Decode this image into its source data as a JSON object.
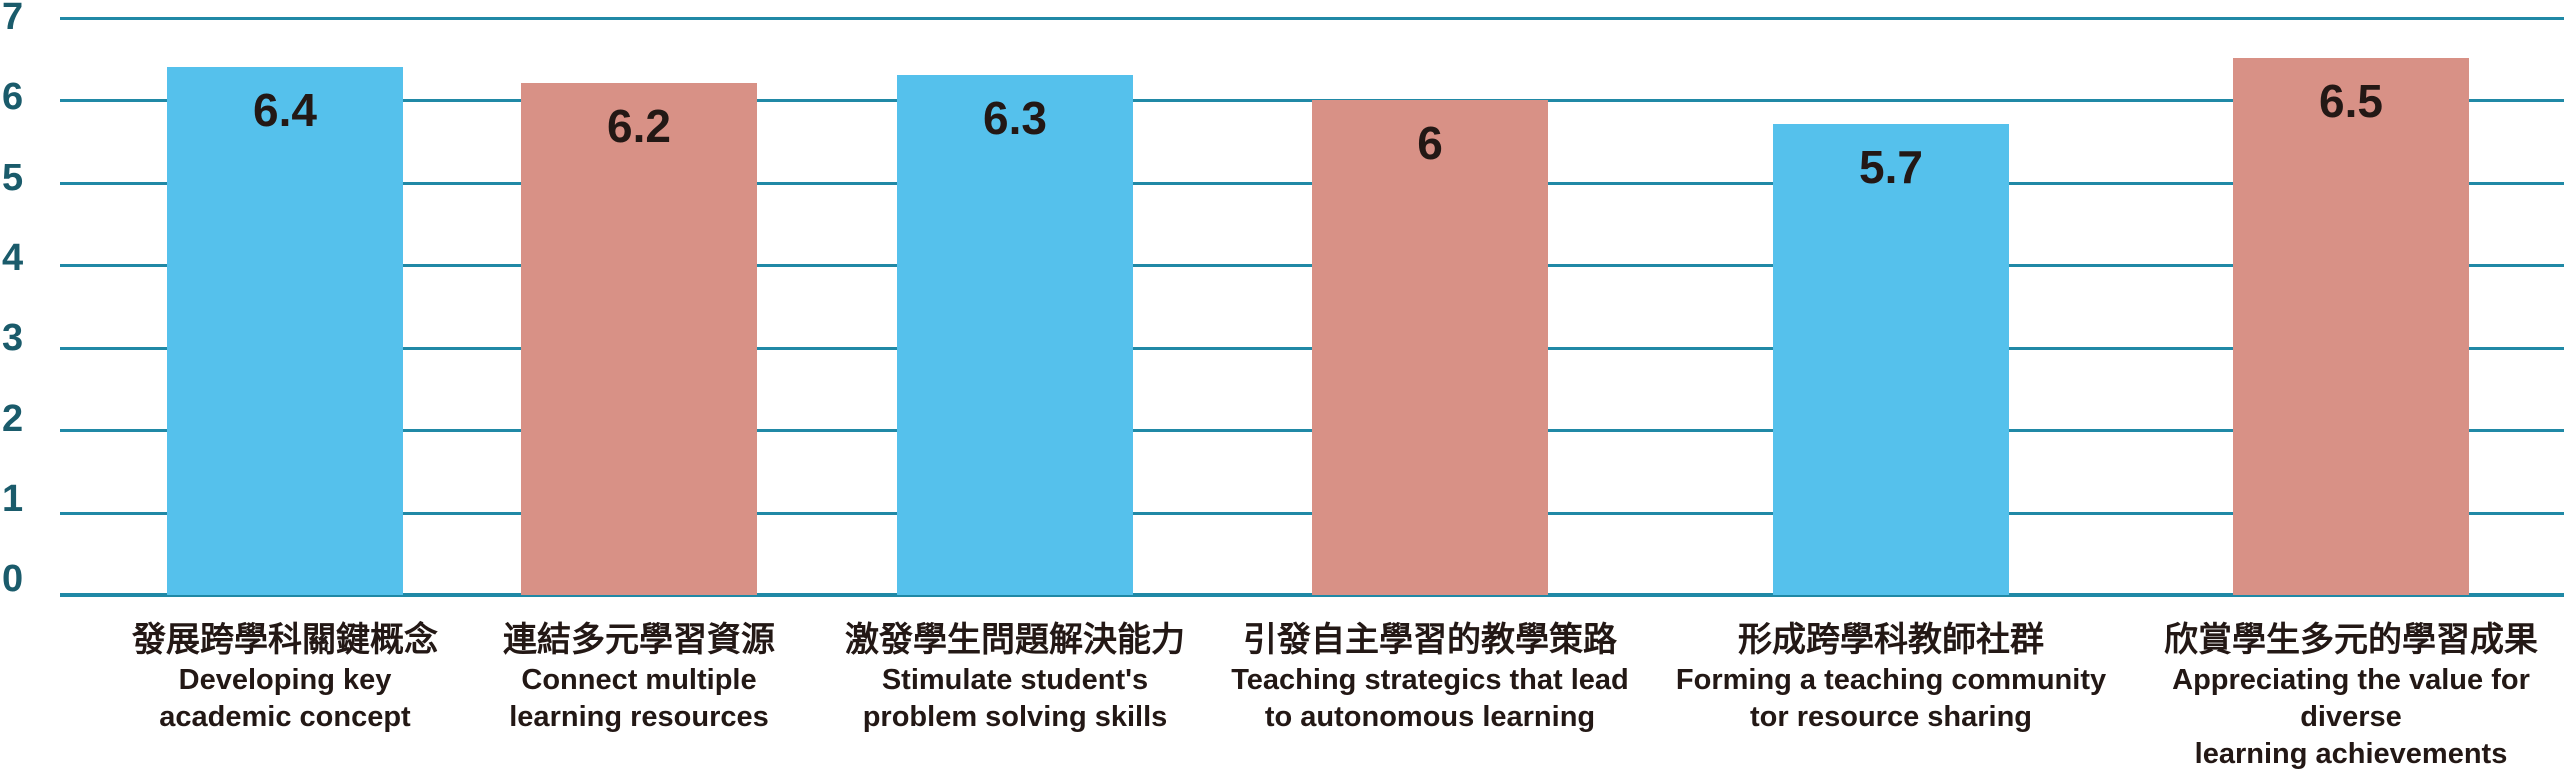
{
  "chart_data": {
    "type": "bar",
    "title": "",
    "xlabel": "",
    "ylabel": "",
    "ylim": [
      0,
      7
    ],
    "yticks": [
      "7",
      "6",
      "5",
      "4",
      "3",
      "2",
      "1",
      "0"
    ],
    "grid": "horizontal",
    "legend": "none",
    "colors": {
      "bar_blue": "#55C1EC",
      "bar_salmon": "#D89186",
      "gridline": "#2089A6",
      "tick_text": "#1A5B6B",
      "label_text": "#231815"
    },
    "categories_zh": [
      "發展跨學科關鍵概念",
      "連結多元學習資源",
      "激發學生問題解決能力",
      "引發自主學習的教學策路",
      "形成跨學科教師社群",
      "欣賞學生多元的學習成果"
    ],
    "categories_en": [
      "Developing key academic concept",
      "Connect multiple learning resources",
      "Stimulate student's problem solving skills",
      "Teaching strategics that lead to autonomous learning",
      "Forming a teaching community tor resource sharing",
      "Appreciating the value for diverse learning achievements"
    ],
    "values": [
      6.4,
      6.2,
      6.3,
      6,
      5.7,
      6.5
    ],
    "bars": [
      {
        "value": 6.4,
        "value_label": "6.4",
        "color": "#55C1EC",
        "category_zh": "發展跨學科關鍵概念",
        "en_line1": "Developing key",
        "en_line2": "academic concept"
      },
      {
        "value": 6.2,
        "value_label": "6.2",
        "color": "#D89186",
        "category_zh": "連結多元學習資源",
        "en_line1": "Connect multiple",
        "en_line2": "learning resources"
      },
      {
        "value": 6.3,
        "value_label": "6.3",
        "color": "#55C1EC",
        "category_zh": "激發學生問題解決能力",
        "en_line1": "Stimulate student's",
        "en_line2": "problem solving skills"
      },
      {
        "value": 6,
        "value_label": "6",
        "color": "#D89186",
        "category_zh": "引發自主學習的教學策路",
        "en_line1": "Teaching strategics that lead",
        "en_line2": "to autonomous learning"
      },
      {
        "value": 5.7,
        "value_label": "5.7",
        "color": "#55C1EC",
        "category_zh": "形成跨學科教師社群",
        "en_line1": "Forming a teaching community",
        "en_line2": "tor resource sharing"
      },
      {
        "value": 6.5,
        "value_label": "6.5",
        "color": "#D89186",
        "category_zh": "欣賞學生多元的學習成果",
        "en_line1": "Appreciating the value for diverse",
        "en_line2": "learning achievements"
      }
    ]
  }
}
